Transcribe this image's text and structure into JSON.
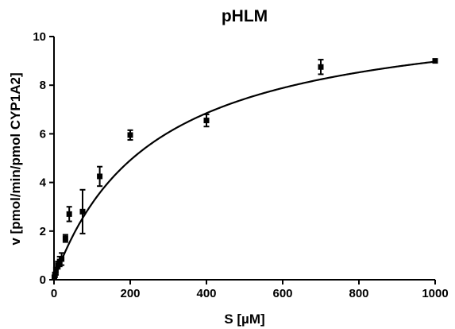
{
  "chart_data": {
    "type": "scatter",
    "title": "pHLM",
    "xlabel": "S [µM]",
    "ylabel": "v [pmol/min/pmol CYP1A2]",
    "xlim": [
      0,
      1000
    ],
    "ylim": [
      0,
      10
    ],
    "xticks": [
      0,
      200,
      400,
      600,
      800,
      1000
    ],
    "yticks": [
      0,
      2,
      4,
      6,
      8,
      10
    ],
    "grid": false,
    "series": [
      {
        "points": [
          {
            "x": 1,
            "y": 0.1,
            "err": 0.05
          },
          {
            "x": 2.5,
            "y": 0.2,
            "err": 0.1
          },
          {
            "x": 5,
            "y": 0.35,
            "err": 0.15
          },
          {
            "x": 10,
            "y": 0.6,
            "err": 0.15
          },
          {
            "x": 15,
            "y": 0.75,
            "err": 0.2
          },
          {
            "x": 20,
            "y": 0.85,
            "err": 0.25
          },
          {
            "x": 30,
            "y": 1.7,
            "err": 0.15
          },
          {
            "x": 40,
            "y": 2.7,
            "err": 0.3
          },
          {
            "x": 75,
            "y": 2.8,
            "err": 0.9
          },
          {
            "x": 120,
            "y": 4.25,
            "err": 0.4
          },
          {
            "x": 200,
            "y": 5.95,
            "err": 0.2
          },
          {
            "x": 400,
            "y": 6.55,
            "err": 0.25
          },
          {
            "x": 700,
            "y": 8.75,
            "err": 0.3
          },
          {
            "x": 1000,
            "y": 9.0,
            "err": 0.05
          }
        ]
      }
    ],
    "fit": {
      "model": "michaelis-menten",
      "vmax": 11.3,
      "km": 260
    }
  }
}
